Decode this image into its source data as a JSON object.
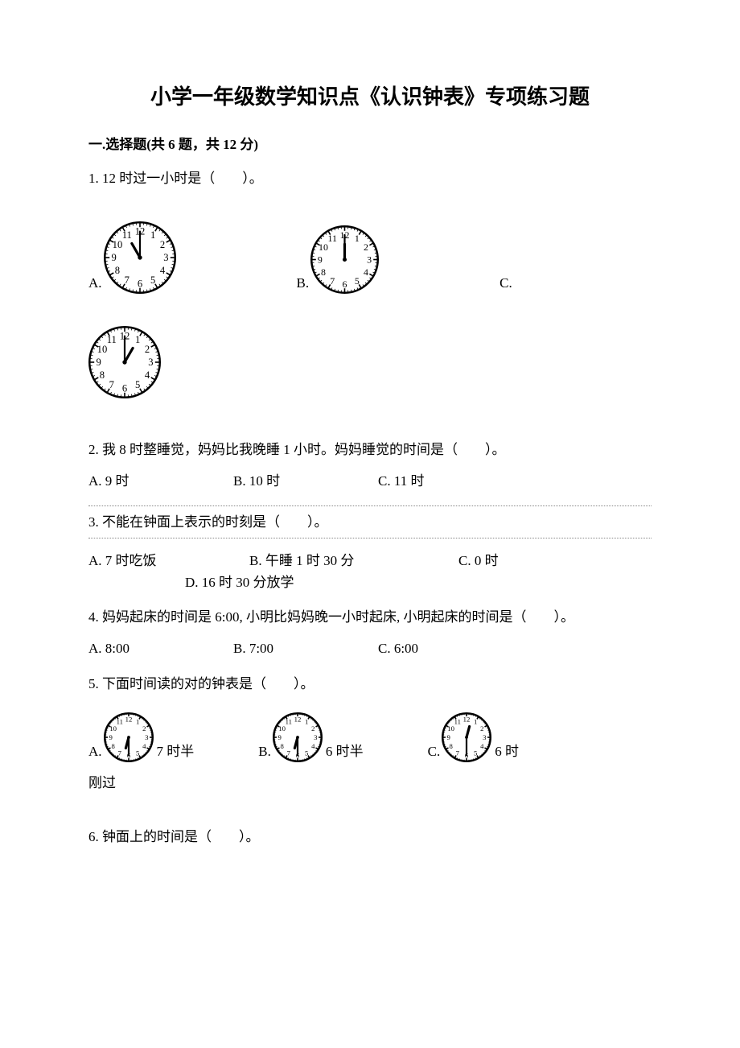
{
  "title": "小学一年级数学知识点《认识钟表》专项练习题",
  "section": "一.选择题(共 6 题，共 12 分)",
  "q1": {
    "text": "1. 12 时过一小时是（　　）。",
    "optA": "A.",
    "optB": "B.",
    "optC": "C.",
    "clockA": {
      "hour": 11,
      "minute": 0,
      "size": 90
    },
    "clockB": {
      "hour": 12,
      "minute": 0,
      "size": 85
    },
    "clockC": {
      "hour": 1,
      "minute": 0,
      "size": 90
    }
  },
  "q2": {
    "text": "2. 我 8 时整睡觉，妈妈比我晚睡 1 小时。妈妈睡觉的时间是（　　）。",
    "optA": "A. 9 时",
    "optB": "B. 10 时",
    "optC": "C. 11 时"
  },
  "q3": {
    "text": "3. 不能在钟面上表示的时刻是（　　）。",
    "optA": "A. 7 时吃饭",
    "optB": "B. 午睡 1 时 30 分",
    "optC": "C. 0 时",
    "optD": "D. 16 时 30 分放学"
  },
  "q4": {
    "text": "4. 妈妈起床的时间是 6:00, 小明比妈妈晚一小时起床, 小明起床的时间是（　　）。",
    "optA": "A. 8:00",
    "optB": "B. 7:00",
    "optC": "C. 6:00"
  },
  "q5": {
    "text": "5. 下面时间读的对的钟表是（　　）。",
    "optA": "A.",
    "optB": "B.",
    "optC": "C.",
    "afterA": " 7 时半",
    "afterB": " 6 时半",
    "afterC": " 6 时",
    "trailing": "刚过",
    "clockA": {
      "hour": 6,
      "minute": 30,
      "size": 62
    },
    "clockB": {
      "hour": 6,
      "minute": 30,
      "size": 62
    },
    "clockC": {
      "hour": 12,
      "minute": 30,
      "size": 62
    }
  },
  "q6": {
    "text": "6. 钟面上的时间是（　　）。"
  },
  "clock_style": {
    "stroke": "#000000",
    "fill": "#ffffff",
    "number_fontsize_ratio": 0.14,
    "tick_outer_ratio": 0.95,
    "tick_inner_minor": 0.9,
    "tick_inner_major": 0.84,
    "number_radius_ratio": 0.72,
    "hour_hand_ratio": 0.45,
    "minute_hand_ratio": 0.72,
    "hour_hand_width": 3.2,
    "minute_hand_width": 2.2,
    "outer_stroke_width": 2.5
  }
}
